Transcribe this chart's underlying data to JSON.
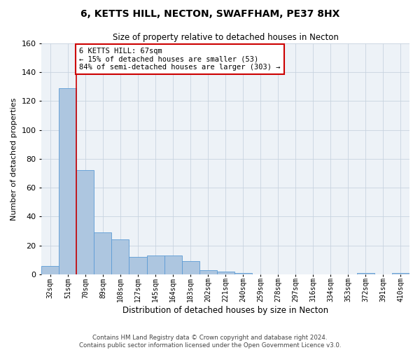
{
  "title": "6, KETTS HILL, NECTON, SWAFFHAM, PE37 8HX",
  "subtitle": "Size of property relative to detached houses in Necton",
  "xlabel": "Distribution of detached houses by size in Necton",
  "ylabel": "Number of detached properties",
  "categories": [
    "32sqm",
    "51sqm",
    "70sqm",
    "89sqm",
    "108sqm",
    "127sqm",
    "145sqm",
    "164sqm",
    "183sqm",
    "202sqm",
    "221sqm",
    "240sqm",
    "259sqm",
    "278sqm",
    "297sqm",
    "316sqm",
    "334sqm",
    "353sqm",
    "372sqm",
    "391sqm",
    "410sqm"
  ],
  "values": [
    6,
    129,
    72,
    29,
    24,
    12,
    13,
    13,
    9,
    3,
    2,
    1,
    0,
    0,
    0,
    0,
    0,
    0,
    1,
    0,
    1
  ],
  "bar_color": "#adc6e0",
  "bar_edge_color": "#5b9bd5",
  "property_line_x": 1.5,
  "annotation_text": "6 KETTS HILL: 67sqm\n← 15% of detached houses are smaller (53)\n84% of semi-detached houses are larger (303) →",
  "annotation_box_color": "#ffffff",
  "annotation_box_edge_color": "#cc0000",
  "ylim": [
    0,
    160
  ],
  "yticks": [
    0,
    20,
    40,
    60,
    80,
    100,
    120,
    140,
    160
  ],
  "footer1": "Contains HM Land Registry data © Crown copyright and database right 2024.",
  "footer2": "Contains public sector information licensed under the Open Government Licence v3.0.",
  "bg_color": "#edf2f7",
  "grid_color": "#c8d4e0"
}
